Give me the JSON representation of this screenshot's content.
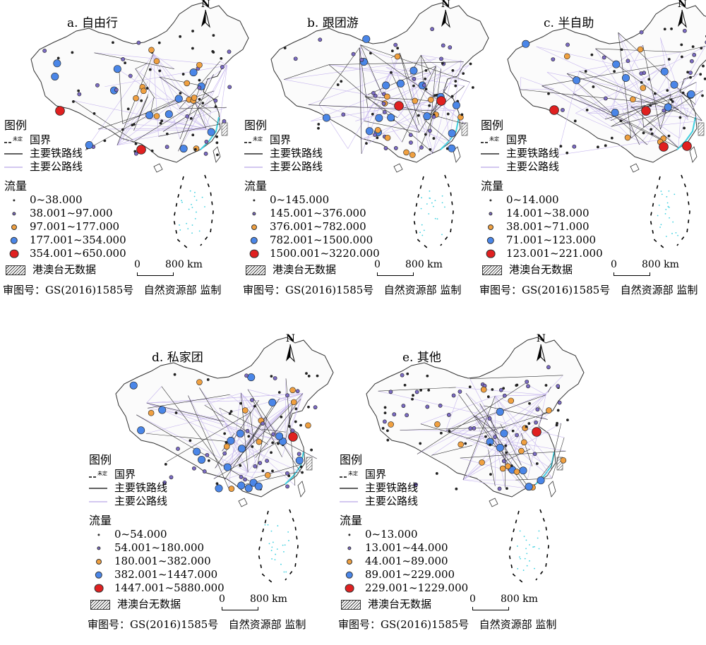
{
  "legend": {
    "title": "图例",
    "boundary_mark": "未定",
    "boundary": "国界",
    "railway": "主要铁路线",
    "highway": "主要公路线",
    "flow": "流量",
    "nodata": "港澳台无数据"
  },
  "credit": {
    "approval": "审图号：GS(2016)1585号",
    "agency": "自然资源部 监制"
  },
  "scale": {
    "zero": "0",
    "km": "800 km"
  },
  "north": "N",
  "class_colors": [
    "#222222",
    "#7b6bc4",
    "#f0a040",
    "#4a86e8",
    "#e02020"
  ],
  "panels": [
    {
      "title": "a. 自由行",
      "classes": [
        "0~38.000",
        "38.001~97.000",
        "97.001~177.000",
        "177.001~354.000",
        "354.001~650.000"
      ]
    },
    {
      "title": "b. 跟团游",
      "classes": [
        "0~145.000",
        "145.001~376.000",
        "376.001~782.000",
        "782.001~1500.000",
        "1500.001~3220.000"
      ]
    },
    {
      "title": "c. 半自助",
      "classes": [
        "0~14.000",
        "14.001~38.000",
        "38.001~71.000",
        "71.001~123.000",
        "123.001~221.000"
      ]
    },
    {
      "title": "d. 私家团",
      "classes": [
        "0~54.000",
        "54.001~180.000",
        "180.001~382.000",
        "382.001~1447.000",
        "1447.001~5880.000"
      ]
    },
    {
      "title": "e. 其他",
      "classes": [
        "0~13.000",
        "13.001~44.000",
        "44.001~89.000",
        "89.001~229.000",
        "229.001~1229.000"
      ]
    }
  ]
}
